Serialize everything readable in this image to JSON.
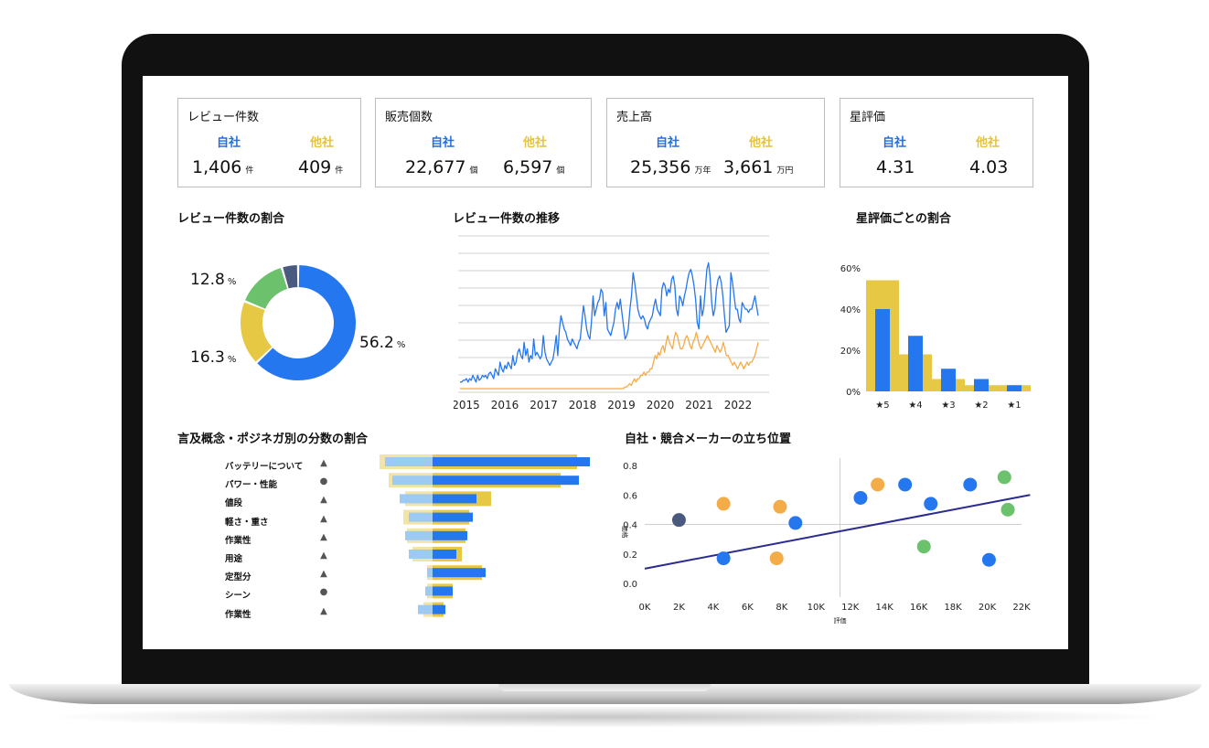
{
  "kpis": [
    {
      "title": "レビュー件数",
      "self_label": "自社",
      "other_label": "他社",
      "self_value": "1,406",
      "self_unit": "件",
      "other_value": "409",
      "other_unit": "件"
    },
    {
      "title": "販売個数",
      "self_label": "自社",
      "other_label": "他社",
      "self_value": "22,677",
      "self_unit": "個",
      "other_value": "6,597",
      "other_unit": "個"
    },
    {
      "title": "売上高",
      "self_label": "自社",
      "other_label": "他社",
      "self_value": "25,356",
      "self_unit": "万年",
      "other_value": "3,661",
      "other_unit": "万円"
    },
    {
      "title": "星評価",
      "self_label": "自社",
      "other_label": "他社",
      "self_value": "4.31",
      "self_unit": "",
      "other_value": "4.03",
      "other_unit": ""
    }
  ],
  "sections": {
    "donut_title": "レビュー件数の割合",
    "trend_title": "レビュー件数の推移",
    "rating_title": "星評価ごとの割合",
    "mention_title": "言及概念・ポジネガ別の分数の割合",
    "position_title": "自社・競合メーカーの立ち位置"
  },
  "colors": {
    "blue": "#2577f0",
    "yellow": "#e6c845",
    "orange": "#f3ac47",
    "green": "#6cc26c",
    "navy": "#4a5a7e",
    "light_blue": "#9ccaf3",
    "light_yellow": "#f2e3a6",
    "trend_line": "#2b4ba0"
  },
  "chart_data": [
    {
      "type": "pie",
      "title": "レビュー件数の割合",
      "slices": [
        {
          "value": 56.2,
          "color": "#2577f0",
          "label": "56.2"
        },
        {
          "value": 16.3,
          "color": "#e6c845",
          "label": "16.3"
        },
        {
          "value": 12.8,
          "color": "#6cc26c",
          "label": "12.8"
        },
        {
          "value": 4.1,
          "color": "#4a5a7e",
          "label": ""
        }
      ],
      "unit": "%"
    },
    {
      "type": "line",
      "title": "レビュー件数の推移",
      "x_ticks": [
        "2015",
        "2016",
        "2017",
        "2018",
        "2019",
        "2020",
        "2021",
        "2022"
      ],
      "x_range": [
        2014.8,
        2022.8
      ],
      "ylim": [
        0,
        45
      ],
      "grid": true,
      "series": [
        {
          "color": "#2577f0",
          "values": [
            2,
            2,
            2.5,
            2.5,
            3,
            2,
            3,
            2.5,
            4,
            3,
            2,
            4,
            2.5,
            3,
            4,
            3.5,
            4,
            3,
            4.5,
            5,
            4,
            3,
            6,
            5,
            4,
            8,
            6,
            5,
            7,
            6,
            8,
            7,
            6,
            10,
            7,
            8,
            11,
            12,
            10,
            9,
            14,
            10,
            12,
            8,
            10,
            9,
            15,
            10,
            11,
            10,
            9,
            10,
            16,
            11,
            9,
            8,
            7,
            8,
            9,
            12,
            16,
            10,
            18,
            22,
            20,
            18,
            17,
            15,
            14,
            13,
            15,
            14,
            13,
            12,
            14,
            15,
            20,
            25,
            22,
            18,
            16,
            15,
            20,
            28,
            22,
            24,
            26,
            27,
            30,
            29,
            22,
            26,
            18,
            17,
            16,
            18,
            20,
            24,
            26,
            24,
            27,
            23,
            19,
            15,
            16,
            18,
            24,
            28,
            35,
            32,
            28,
            24,
            22,
            21,
            22,
            21,
            19,
            18,
            20,
            21,
            22,
            25,
            27,
            24,
            23,
            22,
            30,
            32,
            31,
            28,
            30,
            29,
            33,
            34,
            31,
            24,
            22,
            28,
            27,
            25,
            28,
            30,
            33,
            35,
            36,
            34,
            31,
            27,
            20,
            18,
            28,
            22,
            24,
            30,
            36,
            38,
            34,
            26,
            22,
            24,
            30,
            33,
            34,
            32,
            28,
            22,
            17,
            18,
            19,
            35,
            32,
            28,
            24,
            24,
            21,
            20,
            26,
            25,
            24,
            24,
            23,
            24,
            24,
            26,
            28,
            25,
            22
          ]
        },
        {
          "color": "#f3ac47",
          "values": [
            0,
            0,
            0,
            0,
            0,
            0,
            0,
            0,
            0,
            0,
            0,
            0,
            0,
            0,
            0,
            0,
            0,
            0,
            0,
            0,
            0,
            0,
            0,
            0,
            0,
            0,
            0,
            0,
            0,
            0,
            0,
            0,
            0,
            0,
            0,
            0,
            0,
            0,
            0,
            0,
            0,
            0,
            0,
            0,
            0,
            0,
            0,
            0,
            0,
            0,
            0,
            0,
            0,
            0,
            0,
            0,
            0,
            0,
            0,
            0,
            0,
            0,
            0,
            0,
            0,
            0,
            0,
            0,
            0,
            0,
            0,
            0,
            0,
            0,
            0,
            0,
            0,
            0,
            0,
            0,
            0,
            0,
            0,
            0,
            0,
            0,
            0,
            0,
            0,
            0,
            0,
            0,
            0,
            0,
            0,
            0,
            0,
            0,
            0,
            0,
            0,
            0,
            0,
            0,
            0.5,
            0.5,
            1,
            1.5,
            1,
            2,
            3,
            2,
            3,
            3,
            4,
            4,
            5,
            4,
            5,
            5,
            6,
            6,
            8,
            10,
            9,
            11,
            10,
            12,
            13,
            11,
            14,
            16,
            14,
            13,
            12,
            15,
            17,
            16,
            14,
            12,
            12,
            13,
            15,
            16,
            15,
            13,
            12,
            14,
            15,
            17,
            15,
            13,
            12,
            13,
            14,
            15,
            16,
            15,
            14,
            13,
            12,
            11,
            13,
            12,
            11,
            12,
            14,
            12,
            10,
            10,
            9,
            8,
            7,
            8,
            7,
            6,
            7,
            8,
            7,
            6,
            7,
            8,
            7,
            8,
            8,
            9,
            10,
            12,
            14
          ]
        }
      ]
    },
    {
      "type": "bar",
      "title": "星評価ごとの割合",
      "categories": [
        "★5",
        "★4",
        "★3",
        "★2",
        "★1"
      ],
      "ylim": [
        0,
        60
      ],
      "y_ticks": [
        "0%",
        "20%",
        "40%",
        "60%"
      ],
      "series": [
        {
          "color": "#e6c845",
          "values": [
            54,
            18,
            6,
            3,
            3
          ]
        },
        {
          "color": "#2577f0",
          "values": [
            40,
            27,
            11,
            6,
            3
          ]
        }
      ]
    },
    {
      "type": "bar",
      "title": "言及概念・ポジネガ別の分数の割合",
      "categories": [
        "バッテリーについて",
        "パワー・性能",
        "値段",
        "軽さ・重さ",
        "作業性",
        "用途",
        "定型分",
        "シーン",
        "作業性"
      ],
      "marks": [
        "triangle",
        "circle",
        "triangle",
        "triangle",
        "triangle",
        "triangle",
        "triangle",
        "circle",
        "triangle"
      ],
      "series": [
        {
          "color": "#f2e3a6",
          "values": [
            -58,
            -48,
            -30,
            -32,
            -28,
            -22,
            -6,
            -6,
            -10
          ]
        },
        {
          "color": "#e6c845",
          "values": [
            158,
            140,
            64,
            40,
            36,
            32,
            54,
            22,
            12
          ]
        },
        {
          "color": "#9ccaf3",
          "values": [
            -52,
            -44,
            -36,
            -26,
            -30,
            -26,
            -6,
            -8,
            -16
          ]
        },
        {
          "color": "#2577f0",
          "values": [
            172,
            160,
            48,
            44,
            38,
            26,
            58,
            22,
            14
          ]
        }
      ]
    },
    {
      "type": "scatter",
      "title": "自社・競合メーカーの立ち位置",
      "xlabel": "評価",
      "ylabel": "価格",
      "x_ticks": [
        "0K",
        "2K",
        "4K",
        "6K",
        "8K",
        "10K",
        "12K",
        "14K",
        "16K",
        "18K",
        "20K",
        "22K"
      ],
      "y_ticks": [
        "0.0",
        "0.2",
        "0.4",
        "0.6",
        "0.8"
      ],
      "xlim": [
        0,
        22
      ],
      "ylim": [
        0,
        0.8
      ],
      "points": [
        {
          "x": 2.0,
          "y": 0.43,
          "color": "#4a5a7e"
        },
        {
          "x": 4.6,
          "y": 0.54,
          "color": "#f3ac47"
        },
        {
          "x": 4.6,
          "y": 0.17,
          "color": "#2577f0"
        },
        {
          "x": 7.9,
          "y": 0.52,
          "color": "#f3ac47"
        },
        {
          "x": 7.7,
          "y": 0.17,
          "color": "#f3ac47"
        },
        {
          "x": 8.8,
          "y": 0.41,
          "color": "#2577f0"
        },
        {
          "x": 12.6,
          "y": 0.58,
          "color": "#2577f0"
        },
        {
          "x": 13.6,
          "y": 0.67,
          "color": "#f3ac47"
        },
        {
          "x": 15.2,
          "y": 0.67,
          "color": "#2577f0"
        },
        {
          "x": 16.7,
          "y": 0.54,
          "color": "#2577f0"
        },
        {
          "x": 16.3,
          "y": 0.25,
          "color": "#6cc26c"
        },
        {
          "x": 19.0,
          "y": 0.67,
          "color": "#2577f0"
        },
        {
          "x": 20.1,
          "y": 0.16,
          "color": "#2577f0"
        },
        {
          "x": 21.0,
          "y": 0.72,
          "color": "#6cc26c"
        },
        {
          "x": 21.2,
          "y": 0.5,
          "color": "#6cc26c"
        }
      ],
      "trend": {
        "x": [
          0,
          22.5
        ],
        "y": [
          0.1,
          0.6
        ],
        "color": "#2b2b8f"
      }
    }
  ]
}
